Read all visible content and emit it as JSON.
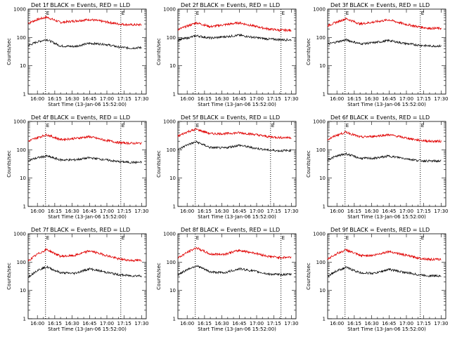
{
  "chart_data": [
    {
      "type": "line",
      "title": "Det 1f BLACK = Events, RED = LLD",
      "xlabel": "Start Time (13-Jan-06 15:52:00)",
      "ylabel": "Counts/sec",
      "yscale": "log",
      "ylim": [
        1,
        1000
      ],
      "xticks": [
        "16:00",
        "16:15",
        "16:30",
        "16:45",
        "17:00",
        "17:15",
        "17:30"
      ],
      "yticks": [
        "1",
        "10",
        "100",
        "1000"
      ],
      "corner_marks": [
        "E",
        "E"
      ],
      "vertical_markers": [
        "16:07",
        "17:12"
      ],
      "series": [
        {
          "color": "#e00000",
          "x": [
            "15:52",
            "16:00",
            "16:08",
            "16:20",
            "16:32",
            "16:45",
            "16:58",
            "17:10",
            "17:20",
            "17:30"
          ],
          "values": [
            320,
            430,
            520,
            340,
            380,
            430,
            360,
            300,
            280,
            280
          ]
        },
        {
          "color": "#000000",
          "x": [
            "15:52",
            "16:00",
            "16:08",
            "16:20",
            "16:32",
            "16:45",
            "16:58",
            "17:10",
            "17:20",
            "17:30"
          ],
          "values": [
            52,
            70,
            85,
            50,
            48,
            62,
            58,
            46,
            42,
            44
          ]
        }
      ]
    },
    {
      "type": "line",
      "title": "Det 2f BLACK = Events, RED = LLD",
      "xlabel": "Start Time (13-Jan-06 15:52:00)",
      "ylabel": "Counts/sec",
      "yscale": "log",
      "ylim": [
        1,
        1000
      ],
      "xticks": [
        "16:00",
        "16:15",
        "16:30",
        "16:45",
        "17:00",
        "17:15",
        "17:30"
      ],
      "yticks": [
        "1",
        "10",
        "100",
        "1000"
      ],
      "corner_marks": [
        "E",
        "E"
      ],
      "vertical_markers": [
        "16:07",
        "17:21"
      ],
      "series": [
        {
          "color": "#e00000",
          "x": [
            "15:52",
            "16:00",
            "16:08",
            "16:20",
            "16:32",
            "16:45",
            "16:58",
            "17:10",
            "17:20",
            "17:30"
          ],
          "values": [
            190,
            250,
            330,
            240,
            280,
            330,
            250,
            200,
            180,
            180
          ]
        },
        {
          "color": "#000000",
          "x": [
            "15:52",
            "16:00",
            "16:08",
            "16:20",
            "16:32",
            "16:45",
            "16:58",
            "17:10",
            "17:20",
            "17:30"
          ],
          "values": [
            82,
            95,
            115,
            95,
            105,
            120,
            100,
            88,
            84,
            82
          ]
        }
      ]
    },
    {
      "type": "line",
      "title": "Det 3f BLACK = Events, RED = LLD",
      "xlabel": "Start Time (13-Jan-06 15:52:00)",
      "ylabel": "Counts/sec",
      "yscale": "log",
      "ylim": [
        1,
        1000
      ],
      "xticks": [
        "16:00",
        "16:15",
        "16:30",
        "16:45",
        "17:00",
        "17:15",
        "17:30"
      ],
      "yticks": [
        "1",
        "10",
        "100",
        "1000"
      ],
      "corner_marks": [
        "E",
        "E"
      ],
      "vertical_markers": [
        "16:07",
        "17:12"
      ],
      "series": [
        {
          "color": "#e00000",
          "x": [
            "15:52",
            "16:00",
            "16:08",
            "16:20",
            "16:32",
            "16:45",
            "16:58",
            "17:10",
            "17:20",
            "17:30"
          ],
          "values": [
            260,
            350,
            460,
            300,
            350,
            420,
            300,
            240,
            210,
            210
          ]
        },
        {
          "color": "#000000",
          "x": [
            "15:52",
            "16:00",
            "16:08",
            "16:20",
            "16:32",
            "16:45",
            "16:58",
            "17:10",
            "17:20",
            "17:30"
          ],
          "values": [
            58,
            70,
            82,
            60,
            65,
            78,
            62,
            54,
            50,
            50
          ]
        }
      ]
    },
    {
      "type": "line",
      "title": "Det 4f BLACK = Events, RED = LLD",
      "xlabel": "Start Time (13-Jan-06 15:52:00)",
      "ylabel": "Counts/sec",
      "yscale": "log",
      "ylim": [
        1,
        1000
      ],
      "xticks": [
        "16:00",
        "16:15",
        "16:30",
        "16:45",
        "17:00",
        "17:15",
        "17:30"
      ],
      "yticks": [
        "1",
        "10",
        "100",
        "1000"
      ],
      "corner_marks": [
        "E",
        "E"
      ],
      "vertical_markers": [
        "16:07",
        "17:12"
      ],
      "series": [
        {
          "color": "#e00000",
          "x": [
            "15:52",
            "16:00",
            "16:08",
            "16:20",
            "16:32",
            "16:45",
            "16:58",
            "17:10",
            "17:20",
            "17:30"
          ],
          "values": [
            200,
            270,
            340,
            230,
            250,
            290,
            220,
            180,
            170,
            170
          ]
        },
        {
          "color": "#000000",
          "x": [
            "15:52",
            "16:00",
            "16:08",
            "16:20",
            "16:32",
            "16:45",
            "16:58",
            "17:10",
            "17:20",
            "17:30"
          ],
          "values": [
            42,
            52,
            60,
            44,
            44,
            52,
            45,
            38,
            36,
            36
          ]
        }
      ]
    },
    {
      "type": "line",
      "title": "Det 5f BLACK = Events, RED = LLD",
      "xlabel": "Start Time (13-Jan-06 15:52:00)",
      "ylabel": "Counts/sec",
      "yscale": "log",
      "ylim": [
        1,
        1000
      ],
      "xticks": [
        "16:00",
        "16:15",
        "16:30",
        "16:45",
        "17:00",
        "17:15",
        "17:30"
      ],
      "yticks": [
        "1",
        "10",
        "100",
        "1000"
      ],
      "corner_marks": [
        "E",
        "E"
      ],
      "vertical_markers": [
        "16:07",
        "17:12"
      ],
      "series": [
        {
          "color": "#e00000",
          "x": [
            "15:52",
            "16:00",
            "16:08",
            "16:20",
            "16:32",
            "16:45",
            "16:58",
            "17:10",
            "17:20",
            "17:30"
          ],
          "values": [
            300,
            430,
            530,
            370,
            370,
            400,
            350,
            290,
            270,
            270
          ]
        },
        {
          "color": "#000000",
          "x": [
            "15:52",
            "16:00",
            "16:08",
            "16:20",
            "16:32",
            "16:45",
            "16:58",
            "17:10",
            "17:20",
            "17:30"
          ],
          "values": [
            100,
            150,
            190,
            120,
            115,
            145,
            115,
            98,
            92,
            95
          ]
        }
      ]
    },
    {
      "type": "line",
      "title": "Det 6f BLACK = Events, RED = LLD",
      "xlabel": "Start Time (13-Jan-06 15:52:00)",
      "ylabel": "Counts/sec",
      "yscale": "log",
      "ylim": [
        1,
        1000
      ],
      "xticks": [
        "16:00",
        "16:15",
        "16:30",
        "16:45",
        "17:00",
        "17:15",
        "17:30"
      ],
      "yticks": [
        "1",
        "10",
        "100",
        "1000"
      ],
      "corner_marks": [
        "E",
        "E"
      ],
      "vertical_markers": [
        "16:07",
        "17:12"
      ],
      "series": [
        {
          "color": "#e00000",
          "x": [
            "15:52",
            "16:00",
            "16:08",
            "16:20",
            "16:32",
            "16:45",
            "16:58",
            "17:10",
            "17:20",
            "17:30"
          ],
          "values": [
            230,
            330,
            420,
            280,
            300,
            340,
            270,
            220,
            200,
            200
          ]
        },
        {
          "color": "#000000",
          "x": [
            "15:52",
            "16:00",
            "16:08",
            "16:20",
            "16:32",
            "16:45",
            "16:58",
            "17:10",
            "17:20",
            "17:30"
          ],
          "values": [
            45,
            60,
            72,
            50,
            50,
            60,
            50,
            42,
            40,
            40
          ]
        }
      ]
    },
    {
      "type": "line",
      "title": "Det 7f BLACK = Events, RED = LLD",
      "xlabel": "Start Time (13-Jan-06 15:52:00)",
      "ylabel": "Counts/sec",
      "yscale": "log",
      "ylim": [
        1,
        1000
      ],
      "xticks": [
        "16:00",
        "16:15",
        "16:30",
        "16:45",
        "17:00",
        "17:15",
        "17:30"
      ],
      "yticks": [
        "1",
        "10",
        "100",
        "1000"
      ],
      "corner_marks": [
        "E",
        "E"
      ],
      "vertical_markers": [
        "16:07",
        "17:12"
      ],
      "series": [
        {
          "color": "#e00000",
          "x": [
            "15:52",
            "16:00",
            "16:08",
            "16:20",
            "16:32",
            "16:45",
            "16:58",
            "17:10",
            "17:20",
            "17:30"
          ],
          "values": [
            110,
            190,
            280,
            160,
            170,
            250,
            180,
            130,
            115,
            115
          ]
        },
        {
          "color": "#000000",
          "x": [
            "15:52",
            "16:00",
            "16:08",
            "16:20",
            "16:32",
            "16:45",
            "16:58",
            "17:10",
            "17:20",
            "17:30"
          ],
          "values": [
            30,
            52,
            68,
            42,
            40,
            58,
            45,
            36,
            33,
            33
          ]
        }
      ]
    },
    {
      "type": "line",
      "title": "Det 8f BLACK = Events, RED = LLD",
      "xlabel": "Start Time (13-Jan-06 15:52:00)",
      "ylabel": "Counts/sec",
      "yscale": "log",
      "ylim": [
        1,
        1000
      ],
      "xticks": [
        "16:00",
        "16:15",
        "16:30",
        "16:45",
        "17:00",
        "17:15",
        "17:30"
      ],
      "yticks": [
        "1",
        "10",
        "100",
        "1000"
      ],
      "corner_marks": [
        "E",
        "E"
      ],
      "vertical_markers": [
        "16:07",
        "17:21"
      ],
      "series": [
        {
          "color": "#e00000",
          "x": [
            "15:52",
            "16:00",
            "16:08",
            "16:20",
            "16:32",
            "16:45",
            "16:58",
            "17:10",
            "17:20",
            "17:30"
          ],
          "values": [
            140,
            220,
            320,
            190,
            190,
            260,
            210,
            160,
            145,
            150
          ]
        },
        {
          "color": "#000000",
          "x": [
            "15:52",
            "16:00",
            "16:08",
            "16:20",
            "16:32",
            "16:45",
            "16:58",
            "17:10",
            "17:20",
            "17:30"
          ],
          "values": [
            35,
            55,
            75,
            45,
            42,
            58,
            48,
            38,
            36,
            37
          ]
        }
      ]
    },
    {
      "type": "line",
      "title": "Det 9f BLACK = Events, RED = LLD",
      "xlabel": "Start Time (13-Jan-06 15:52:00)",
      "ylabel": "Counts/sec",
      "yscale": "log",
      "ylim": [
        1,
        1000
      ],
      "xticks": [
        "16:00",
        "16:15",
        "16:30",
        "16:45",
        "17:00",
        "17:15",
        "17:30"
      ],
      "yticks": [
        "1",
        "10",
        "100",
        "1000"
      ],
      "corner_marks": [
        "E",
        "E"
      ],
      "vertical_markers": [
        "16:07",
        "17:12"
      ],
      "series": [
        {
          "color": "#e00000",
          "x": [
            "15:52",
            "16:00",
            "16:08",
            "16:20",
            "16:32",
            "16:45",
            "16:58",
            "17:10",
            "17:20",
            "17:30"
          ],
          "values": [
            130,
            200,
            270,
            170,
            175,
            240,
            180,
            140,
            125,
            125
          ]
        },
        {
          "color": "#000000",
          "x": [
            "15:52",
            "16:00",
            "16:08",
            "16:20",
            "16:32",
            "16:45",
            "16:58",
            "17:10",
            "17:20",
            "17:30"
          ],
          "values": [
            32,
            50,
            65,
            42,
            40,
            55,
            44,
            36,
            33,
            33
          ]
        }
      ]
    }
  ]
}
